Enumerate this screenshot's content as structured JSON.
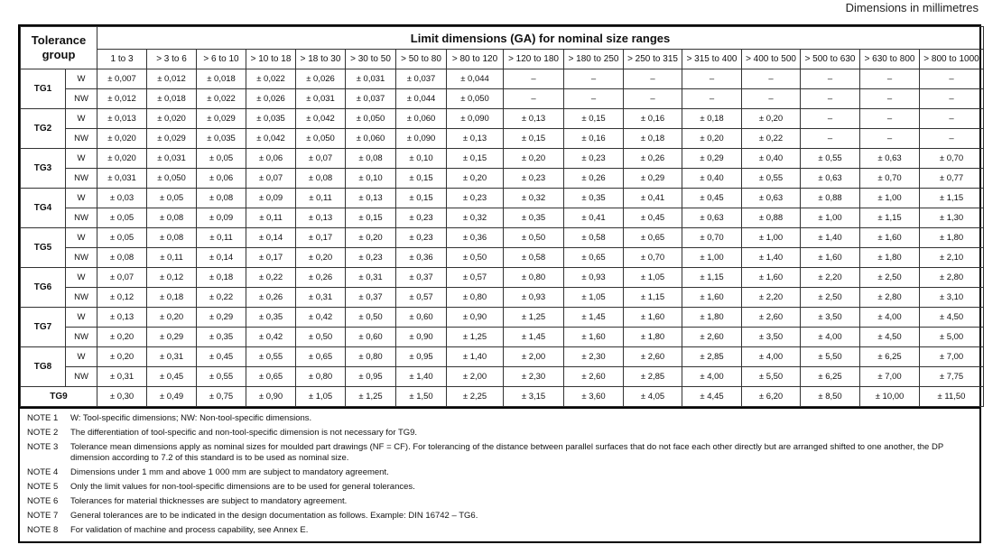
{
  "caption": "Dimensions in millimetres",
  "table": {
    "group_label": "Tolerance group",
    "span_label": "Limit dimensions (GA) for nominal size ranges",
    "ranges": [
      "1 to 3",
      "> 3 to 6",
      "> 6 to 10",
      "> 10 to 18",
      "> 18 to 30",
      "> 30 to 50",
      "> 50 to 80",
      "> 80 to 120",
      "> 120 to 180",
      "> 180 to 250",
      "> 250 to 315",
      "> 315 to 400",
      "> 400 to 500",
      "> 500 to 630",
      "> 630 to 800",
      "> 800 to 1000"
    ],
    "groups": [
      {
        "name": "TG1",
        "rows": [
          {
            "type": "W",
            "values": [
              "± 0,007",
              "± 0,012",
              "± 0,018",
              "± 0,022",
              "± 0,026",
              "± 0,031",
              "± 0,037",
              "± 0,044",
              "–",
              "–",
              "–",
              "–",
              "–",
              "–",
              "–",
              "–"
            ]
          },
          {
            "type": "NW",
            "values": [
              "± 0,012",
              "± 0,018",
              "± 0,022",
              "± 0,026",
              "± 0,031",
              "± 0,037",
              "± 0,044",
              "± 0,050",
              "–",
              "–",
              "–",
              "–",
              "–",
              "–",
              "–",
              "–"
            ]
          }
        ]
      },
      {
        "name": "TG2",
        "rows": [
          {
            "type": "W",
            "values": [
              "± 0,013",
              "± 0,020",
              "± 0,029",
              "± 0,035",
              "± 0,042",
              "± 0,050",
              "± 0,060",
              "± 0,090",
              "± 0,13",
              "± 0,15",
              "± 0,16",
              "± 0,18",
              "± 0,20",
              "–",
              "–",
              "–"
            ]
          },
          {
            "type": "NW",
            "values": [
              "± 0,020",
              "± 0,029",
              "± 0,035",
              "± 0,042",
              "± 0,050",
              "± 0,060",
              "± 0,090",
              "± 0,13",
              "± 0,15",
              "± 0,16",
              "± 0,18",
              "± 0,20",
              "± 0,22",
              "–",
              "–",
              "–"
            ]
          }
        ]
      },
      {
        "name": "TG3",
        "rows": [
          {
            "type": "W",
            "values": [
              "± 0,020",
              "± 0,031",
              "± 0,05",
              "± 0,06",
              "± 0,07",
              "± 0,08",
              "± 0,10",
              "± 0,15",
              "± 0,20",
              "± 0,23",
              "± 0,26",
              "± 0,29",
              "± 0,40",
              "± 0,55",
              "± 0,63",
              "± 0,70"
            ]
          },
          {
            "type": "NW",
            "values": [
              "± 0,031",
              "± 0,050",
              "± 0,06",
              "± 0,07",
              "± 0,08",
              "± 0,10",
              "± 0,15",
              "± 0,20",
              "± 0,23",
              "± 0,26",
              "± 0,29",
              "± 0,40",
              "± 0,55",
              "± 0,63",
              "± 0,70",
              "± 0,77"
            ]
          }
        ]
      },
      {
        "name": "TG4",
        "rows": [
          {
            "type": "W",
            "values": [
              "± 0,03",
              "± 0,05",
              "± 0,08",
              "± 0,09",
              "± 0,11",
              "± 0,13",
              "± 0,15",
              "± 0,23",
              "± 0,32",
              "± 0,35",
              "± 0,41",
              "± 0,45",
              "± 0,63",
              "± 0,88",
              "± 1,00",
              "± 1,15"
            ]
          },
          {
            "type": "NW",
            "values": [
              "± 0,05",
              "± 0,08",
              "± 0,09",
              "± 0,11",
              "± 0,13",
              "± 0,15",
              "± 0,23",
              "± 0,32",
              "± 0,35",
              "± 0,41",
              "± 0,45",
              "± 0,63",
              "± 0,88",
              "± 1,00",
              "± 1,15",
              "± 1,30"
            ]
          }
        ]
      },
      {
        "name": "TG5",
        "rows": [
          {
            "type": "W",
            "values": [
              "± 0,05",
              "± 0,08",
              "± 0,11",
              "± 0,14",
              "± 0,17",
              "± 0,20",
              "± 0,23",
              "± 0,36",
              "± 0,50",
              "± 0,58",
              "± 0,65",
              "± 0,70",
              "± 1,00",
              "± 1,40",
              "± 1,60",
              "± 1,80"
            ]
          },
          {
            "type": "NW",
            "values": [
              "± 0,08",
              "± 0,11",
              "± 0,14",
              "± 0,17",
              "± 0,20",
              "± 0,23",
              "± 0,36",
              "± 0,50",
              "± 0,58",
              "± 0,65",
              "± 0,70",
              "± 1,00",
              "± 1,40",
              "± 1,60",
              "± 1,80",
              "± 2,10"
            ]
          }
        ]
      },
      {
        "name": "TG6",
        "rows": [
          {
            "type": "W",
            "values": [
              "± 0,07",
              "± 0,12",
              "± 0,18",
              "± 0,22",
              "± 0,26",
              "± 0,31",
              "± 0,37",
              "± 0,57",
              "± 0,80",
              "± 0,93",
              "± 1,05",
              "± 1,15",
              "± 1,60",
              "± 2,20",
              "± 2,50",
              "± 2,80"
            ]
          },
          {
            "type": "NW",
            "values": [
              "± 0,12",
              "± 0,18",
              "± 0,22",
              "± 0,26",
              "± 0,31",
              "± 0,37",
              "± 0,57",
              "± 0,80",
              "± 0,93",
              "± 1,05",
              "± 1,15",
              "± 1,60",
              "± 2,20",
              "± 2,50",
              "± 2,80",
              "± 3,10"
            ]
          }
        ]
      },
      {
        "name": "TG7",
        "rows": [
          {
            "type": "W",
            "values": [
              "± 0,13",
              "± 0,20",
              "± 0,29",
              "± 0,35",
              "± 0,42",
              "± 0,50",
              "± 0,60",
              "± 0,90",
              "± 1,25",
              "± 1,45",
              "± 1,60",
              "± 1,80",
              "± 2,60",
              "± 3,50",
              "± 4,00",
              "± 4,50"
            ]
          },
          {
            "type": "NW",
            "values": [
              "± 0,20",
              "± 0,29",
              "± 0,35",
              "± 0,42",
              "± 0,50",
              "± 0,60",
              "± 0,90",
              "± 1,25",
              "± 1,45",
              "± 1,60",
              "± 1,80",
              "± 2,60",
              "± 3,50",
              "± 4,00",
              "± 4,50",
              "± 5,00"
            ]
          }
        ]
      },
      {
        "name": "TG8",
        "rows": [
          {
            "type": "W",
            "values": [
              "± 0,20",
              "± 0,31",
              "± 0,45",
              "± 0,55",
              "± 0,65",
              "± 0,80",
              "± 0,95",
              "± 1,40",
              "± 2,00",
              "± 2,30",
              "± 2,60",
              "± 2,85",
              "± 4,00",
              "± 5,50",
              "± 6,25",
              "± 7,00"
            ]
          },
          {
            "type": "NW",
            "values": [
              "± 0,31",
              "± 0,45",
              "± 0,55",
              "± 0,65",
              "± 0,80",
              "± 0,95",
              "± 1,40",
              "± 2,00",
              "± 2,30",
              "± 2,60",
              "± 2,85",
              "± 4,00",
              "± 5,50",
              "± 6,25",
              "± 7,00",
              "± 7,75"
            ]
          }
        ]
      },
      {
        "name": "TG9",
        "rows": [
          {
            "values": [
              "± 0,30",
              "± 0,49",
              "± 0,75",
              "± 0,90",
              "± 1,05",
              "± 1,25",
              "± 1,50",
              "± 2,25",
              "± 3,15",
              "± 3,60",
              "± 4,05",
              "± 4,45",
              "± 6,20",
              "± 8,50",
              "± 10,00",
              "± 11,50"
            ]
          }
        ]
      }
    ]
  },
  "notes": [
    {
      "label": "NOTE 1",
      "text": "W: Tool-specific dimensions; NW: Non-tool-specific dimensions."
    },
    {
      "label": "NOTE 2",
      "text": "The differentiation of tool-specific and non-tool-specific dimension is not necessary for TG9."
    },
    {
      "label": "NOTE 3",
      "text": "Tolerance mean dimensions apply as nominal sizes for moulded part drawings (NF = CF). For tolerancing of the distance between parallel surfaces that do not face each other directly but are arranged shifted to one another, the DP dimension according to 7.2 of this standard is to be used as nominal size."
    },
    {
      "label": "NOTE 4",
      "text": "Dimensions under 1 mm and above 1 000 mm are subject to mandatory agreement."
    },
    {
      "label": "NOTE 5",
      "text": "Only the limit values for non-tool-specific dimensions are to be used for general tolerances."
    },
    {
      "label": "NOTE 6",
      "text": "Tolerances for material thicknesses are subject to mandatory agreement."
    },
    {
      "label": "NOTE 7",
      "text": "General tolerances are to be indicated in the design documentation as follows. Example: DIN 16742 – TG6."
    },
    {
      "label": "NOTE 8",
      "text": "For validation of machine and process capability, see Annex E."
    }
  ]
}
